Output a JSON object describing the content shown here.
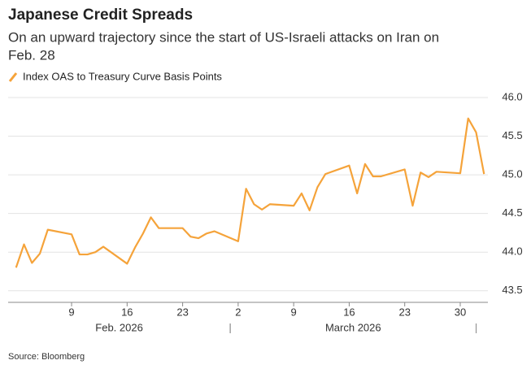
{
  "chart_data": {
    "type": "line",
    "title": "Japanese Credit Spreads",
    "subtitle_lines": [
      "On an upward trajectory since the start of US-Israeli attacks on Iran on",
      "Feb. 28"
    ],
    "source": "Source: Bloomberg",
    "x": [
      "2026-02-02",
      "2026-02-03",
      "2026-02-04",
      "2026-02-05",
      "2026-02-06",
      "2026-02-09",
      "2026-02-10",
      "2026-02-11",
      "2026-02-12",
      "2026-02-13",
      "2026-02-16",
      "2026-02-17",
      "2026-02-18",
      "2026-02-19",
      "2026-02-20",
      "2026-02-23",
      "2026-02-24",
      "2026-02-25",
      "2026-02-26",
      "2026-02-27",
      "2026-03-02",
      "2026-03-03",
      "2026-03-04",
      "2026-03-05",
      "2026-03-06",
      "2026-03-09",
      "2026-03-10",
      "2026-03-11",
      "2026-03-12",
      "2026-03-13",
      "2026-03-16",
      "2026-03-17",
      "2026-03-18",
      "2026-03-19",
      "2026-03-20",
      "2026-03-23",
      "2026-03-24",
      "2026-03-25",
      "2026-03-26",
      "2026-03-27",
      "2026-03-30",
      "2026-03-31",
      "2026-04-01",
      "2026-04-02"
    ],
    "series": [
      {
        "name": "Index OAS to Treasury Curve Basis Points",
        "color": "#f5a33a",
        "values": [
          43.8,
          44.1,
          43.86,
          43.98,
          44.29,
          44.23,
          43.97,
          43.97,
          44.0,
          44.07,
          43.85,
          44.06,
          44.24,
          44.45,
          44.31,
          44.31,
          44.2,
          44.18,
          44.24,
          44.27,
          44.14,
          44.82,
          44.62,
          44.55,
          44.62,
          44.6,
          44.76,
          44.54,
          44.84,
          45.01,
          45.12,
          44.76,
          45.14,
          44.98,
          44.98,
          45.07,
          44.6,
          45.03,
          44.97,
          45.04,
          45.02,
          45.73,
          45.55,
          45.01
        ]
      }
    ],
    "xlim": [
      "2026-02-01",
      "2026-04-03"
    ],
    "xticks": [
      {
        "value": "2026-02-09",
        "label": "9"
      },
      {
        "value": "2026-02-16",
        "label": "16"
      },
      {
        "value": "2026-02-23",
        "label": "23"
      },
      {
        "value": "2026-03-02",
        "label": "2"
      },
      {
        "value": "2026-03-09",
        "label": "9"
      },
      {
        "value": "2026-03-16",
        "label": "16"
      },
      {
        "value": "2026-03-23",
        "label": "23"
      },
      {
        "value": "2026-03-30",
        "label": "30"
      }
    ],
    "month_labels": [
      {
        "label": "Feb. 2026",
        "start": "2026-02-01",
        "end": "2026-03-01"
      },
      {
        "label": "March 2026",
        "start": "2026-03-01",
        "end": "2026-04-01"
      }
    ],
    "ylim": [
      43.35,
      46.0
    ],
    "yticks": [
      {
        "value": 43.5,
        "label": "43.5"
      },
      {
        "value": 44.0,
        "label": "44.0"
      },
      {
        "value": 44.5,
        "label": "44.5"
      },
      {
        "value": 45.0,
        "label": "45.0"
      },
      {
        "value": 45.5,
        "label": "45.5"
      },
      {
        "value": 46.0,
        "label": "46.0"
      }
    ],
    "grid": true
  }
}
